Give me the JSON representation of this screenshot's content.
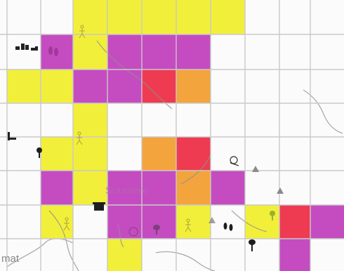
{
  "map": {
    "labels": {
      "place": "Soumeni",
      "edge": "mat"
    },
    "colors": {
      "yellow": "#f2ef3a",
      "magenta": "#c44cc0",
      "orange": "#f3a43c",
      "red": "#ee3b52",
      "grid": "#c9c9c9",
      "paper": "#fbfbfb"
    },
    "icons": [
      "tree-icon",
      "triangle-icon",
      "footprint-icon",
      "hut-icon",
      "animal-icon",
      "person-icon"
    ]
  }
}
